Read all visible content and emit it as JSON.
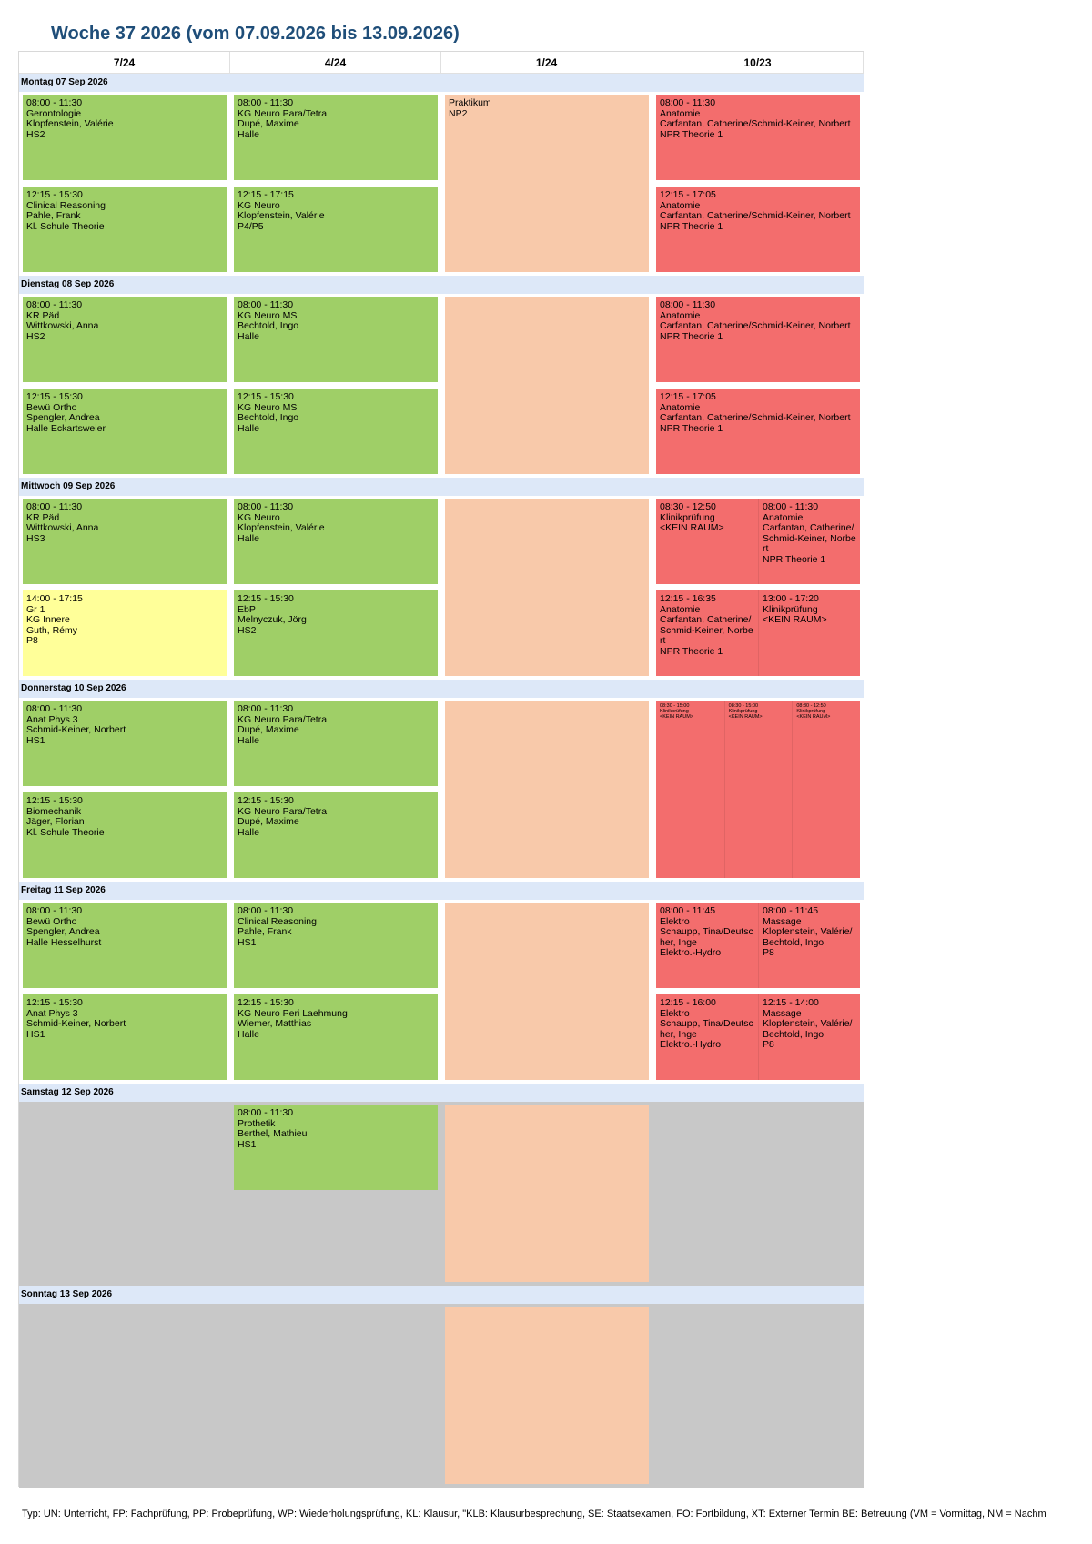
{
  "title": "Woche 37 2026 (vom 07.09.2026 bis 13.09.2026)",
  "columns": [
    "7/24",
    "4/24",
    "1/24",
    "10/23"
  ],
  "days": [
    {
      "label": "Montag 07 Sep 2026",
      "cells": [
        [
          [
            {
              "lines": [
                "08:00 - 11:30",
                "Gerontologie",
                "Klopfenstein, Valérie",
                "HS2"
              ],
              "color": "#9fcf67"
            }
          ],
          [
            {
              "lines": [
                "12:15 - 15:30",
                "Clinical Reasoning",
                "Pahle, Frank",
                "Kl. Schule Theorie"
              ],
              "color": "#9fcf67"
            }
          ]
        ],
        [
          [
            {
              "lines": [
                "08:00 - 11:30",
                "KG Neuro Para/Tetra",
                "Dupé, Maxime",
                "Halle"
              ],
              "color": "#9fcf67"
            }
          ],
          [
            {
              "lines": [
                "12:15 - 17:15",
                "KG Neuro",
                "Klopfenstein, Valérie",
                "P4/P5"
              ],
              "color": "#9fcf67"
            }
          ]
        ],
        [
          [
            {
              "lines": [
                "Praktikum",
                "NP2"
              ],
              "color": "#f8c9aa"
            }
          ]
        ],
        [
          [
            {
              "lines": [
                "08:00 - 11:30",
                "Anatomie",
                "Carfantan, Catherine/Schmid-Keiner, Norbert",
                "NPR Theorie 1"
              ],
              "color": "#f36d6d"
            }
          ],
          [
            {
              "lines": [
                "12:15 - 17:05",
                "Anatomie",
                "Carfantan, Catherine/Schmid-Keiner, Norbert",
                "NPR Theorie 1"
              ],
              "color": "#f36d6d"
            }
          ]
        ]
      ]
    },
    {
      "label": "Dienstag 08 Sep 2026",
      "cells": [
        [
          [
            {
              "lines": [
                "08:00 - 11:30",
                "KR Päd",
                "Wittkowski, Anna",
                "HS2"
              ],
              "color": "#9fcf67"
            }
          ],
          [
            {
              "lines": [
                "12:15 - 15:30",
                "Bewü Ortho",
                "Spengler, Andrea",
                "Halle Eckartsweier"
              ],
              "color": "#9fcf67"
            }
          ]
        ],
        [
          [
            {
              "lines": [
                "08:00 - 11:30",
                "KG Neuro MS",
                "Bechtold, Ingo",
                "Halle"
              ],
              "color": "#9fcf67"
            }
          ],
          [
            {
              "lines": [
                "12:15 - 15:30",
                "KG Neuro MS",
                "Bechtold, Ingo",
                "Halle"
              ],
              "color": "#9fcf67"
            }
          ]
        ],
        [
          [
            {
              "color": "#f8c9aa"
            }
          ]
        ],
        [
          [
            {
              "lines": [
                "08:00 - 11:30",
                "Anatomie",
                "Carfantan, Catherine/Schmid-Keiner, Norbert",
                "NPR Theorie 1"
              ],
              "color": "#f36d6d"
            }
          ],
          [
            {
              "lines": [
                "12:15 - 17:05",
                "Anatomie",
                "Carfantan, Catherine/Schmid-Keiner, Norbert",
                "NPR Theorie 1"
              ],
              "color": "#f36d6d"
            }
          ]
        ]
      ]
    },
    {
      "label": "Mittwoch 09 Sep 2026",
      "cells": [
        [
          [
            {
              "lines": [
                "08:00 - 11:30",
                "KR Päd",
                "Wittkowski, Anna",
                "HS3"
              ],
              "color": "#9fcf67"
            }
          ],
          [
            {
              "lines": [
                "14:00 - 17:15",
                "Gr 1",
                "KG Innere",
                "Guth, Rémy",
                "P8"
              ],
              "color": "#ffff99"
            }
          ]
        ],
        [
          [
            {
              "lines": [
                "08:00 - 11:30",
                "KG Neuro",
                "Klopfenstein, Valérie",
                "Halle"
              ],
              "color": "#9fcf67"
            }
          ],
          [
            {
              "lines": [
                "12:15 - 15:30",
                "EbP",
                "Melnyczuk, Jörg",
                "HS2"
              ],
              "color": "#9fcf67"
            }
          ]
        ],
        [
          [
            {
              "color": "#f8c9aa"
            }
          ]
        ],
        [
          [
            {
              "lines": [
                "08:30 - 12:50",
                "Klinikprüfung",
                "<KEIN RAUM>"
              ],
              "color": "#f36d6d"
            },
            {
              "lines": [
                "08:00 - 11:30",
                "Anatomie",
                "Carfantan, Catherine/Schmid-Keiner, Norbert",
                "NPR Theorie 1"
              ],
              "color": "#f36d6d"
            }
          ],
          [
            {
              "lines": [
                "12:15 - 16:35",
                "Anatomie",
                "Carfantan, Catherine/Schmid-Keiner, Norbert",
                "NPR Theorie 1"
              ],
              "color": "#f36d6d"
            },
            {
              "lines": [
                "13:00 - 17:20",
                "Klinikprüfung",
                "<KEIN RAUM>"
              ],
              "color": "#f36d6d"
            }
          ]
        ]
      ]
    },
    {
      "label": "Donnerstag 10 Sep 2026",
      "cells": [
        [
          [
            {
              "lines": [
                "08:00 - 11:30",
                "Anat Phys 3",
                "Schmid-Keiner, Norbert",
                "HS1"
              ],
              "color": "#9fcf67"
            }
          ],
          [
            {
              "lines": [
                "12:15 - 15:30",
                "Biomechanik",
                "Jäger, Florian",
                "Kl. Schule Theorie"
              ],
              "color": "#9fcf67"
            }
          ]
        ],
        [
          [
            {
              "lines": [
                "08:00 - 11:30",
                "KG Neuro Para/Tetra",
                "Dupé, Maxime",
                "Halle"
              ],
              "color": "#9fcf67"
            }
          ],
          [
            {
              "lines": [
                "12:15 - 15:30",
                "KG Neuro Para/Tetra",
                "Dupé, Maxime",
                "Halle"
              ],
              "color": "#9fcf67"
            }
          ]
        ],
        [
          [
            {
              "color": "#f8c9aa"
            }
          ]
        ],
        [
          [
            {
              "lines": [
                "08:30 - 15:00",
                "Klinikprüfung",
                "<KEIN RAUM>"
              ],
              "color": "#f36d6d"
            },
            {
              "lines": [
                "08:30 - 15:00",
                "Klinikprüfung",
                "<KEIN RAUM>"
              ],
              "color": "#f36d6d"
            },
            {
              "lines": [
                "08:30 - 12:50",
                "Klinikprüfung",
                "<KEIN RAUM>"
              ],
              "color": "#f36d6d"
            }
          ]
        ]
      ]
    },
    {
      "label": "Freitag 11 Sep 2026",
      "cells": [
        [
          [
            {
              "lines": [
                "08:00 - 11:30",
                "Bewü Ortho",
                "Spengler, Andrea",
                "Halle Hesselhurst"
              ],
              "color": "#9fcf67"
            }
          ],
          [
            {
              "lines": [
                "12:15 - 15:30",
                "Anat Phys 3",
                "Schmid-Keiner, Norbert",
                "HS1"
              ],
              "color": "#9fcf67"
            }
          ]
        ],
        [
          [
            {
              "lines": [
                "08:00 - 11:30",
                "Clinical Reasoning",
                "Pahle, Frank",
                "HS1"
              ],
              "color": "#9fcf67"
            }
          ],
          [
            {
              "lines": [
                "12:15 - 15:30",
                "KG Neuro Peri Laehmung",
                "Wiemer, Matthias",
                "Halle"
              ],
              "color": "#9fcf67"
            }
          ]
        ],
        [
          [
            {
              "color": "#f8c9aa"
            }
          ]
        ],
        [
          [
            {
              "lines": [
                "08:00 - 11:45",
                "Elektro",
                "Schaupp, Tina/Deutscher, Inge",
                "Elektro.-Hydro"
              ],
              "color": "#f36d6d"
            },
            {
              "lines": [
                "08:00 - 11:45",
                "Massage",
                "Klopfenstein, Valérie/Bechtold, Ingo",
                "P8"
              ],
              "color": "#f36d6d"
            }
          ],
          [
            {
              "lines": [
                "12:15 - 16:00",
                "Elektro",
                "Schaupp, Tina/Deutscher, Inge",
                "Elektro.-Hydro"
              ],
              "color": "#f36d6d"
            },
            {
              "lines": [
                "12:15 - 14:00",
                "Massage",
                "Klopfenstein, Valérie/Bechtold, Ingo",
                "P8"
              ],
              "color": "#f36d6d"
            }
          ]
        ]
      ]
    },
    {
      "label": "Samstag 12 Sep 2026",
      "color": "#c8c8c8",
      "cells": [
        [],
        [
          [
            {
              "lines": [
                "08:00 - 11:30",
                "Prothetik",
                "Berthel, Mathieu",
                "HS1"
              ],
              "color": "#9fcf67"
            }
          ],
          null
        ],
        [
          [
            {
              "color": "#f8c9aa"
            }
          ]
        ],
        []
      ]
    },
    {
      "label": "Sonntag 13 Sep 2026",
      "color": "#c8c8c8",
      "cells": [
        [],
        [],
        [
          [
            {
              "color": "#f8c9aa"
            }
          ]
        ],
        []
      ]
    }
  ],
  "footer": "Typ: UN: Unterricht, FP: Fachprüfung, PP: Probeprüfung, WP: Wiederholungsprüfung, KL: Klausur, \"KLB: Klausurbesprechung, SE: Staatsexamen, FO: Fortbildung, XT: Externer Termin BE: Betreuung (VM = Vormittag, NM = Nachm"
}
